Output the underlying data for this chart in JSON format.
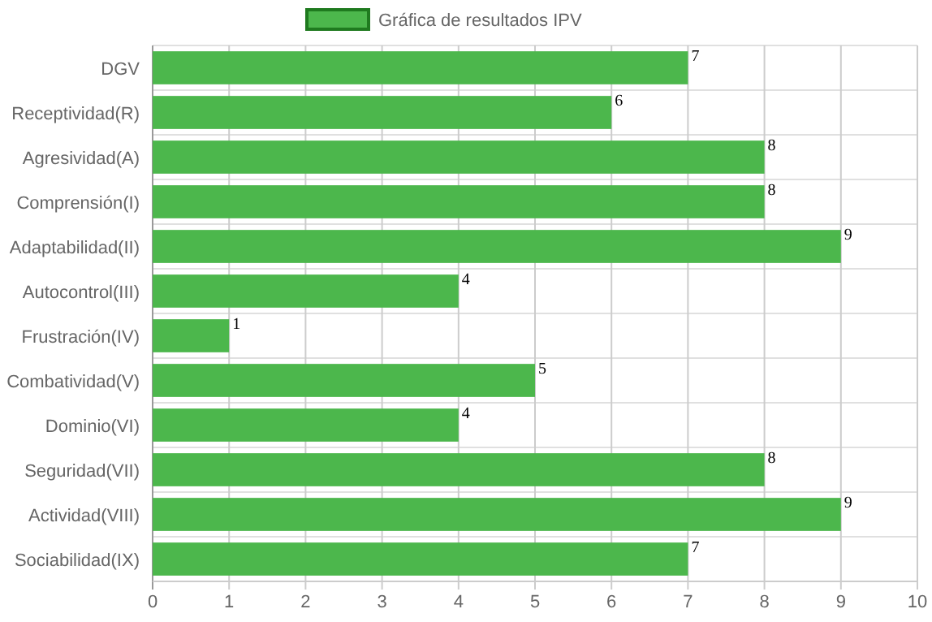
{
  "chart_data": {
    "type": "bar",
    "orientation": "horizontal",
    "categories": [
      "DGV",
      "Receptividad(R)",
      "Agresividad(A)",
      "Comprensión(I)",
      "Adaptabilidad(II)",
      "Autocontrol(III)",
      "Frustración(IV)",
      "Combatividad(V)",
      "Dominio(VI)",
      "Seguridad(VII)",
      "Actividad(VIII)",
      "Sociabilidad(IX)"
    ],
    "series": [
      {
        "name": "Gráfica de resultados IPV",
        "color": "#4cb74c",
        "values": [
          7,
          6,
          8,
          8,
          9,
          4,
          1,
          5,
          4,
          8,
          9,
          7
        ]
      }
    ],
    "xlim": [
      0,
      10
    ],
    "xticks": [
      0,
      1,
      2,
      3,
      4,
      5,
      6,
      7,
      8,
      9,
      10
    ],
    "grid": true,
    "legend": "top",
    "data_labels": true
  }
}
